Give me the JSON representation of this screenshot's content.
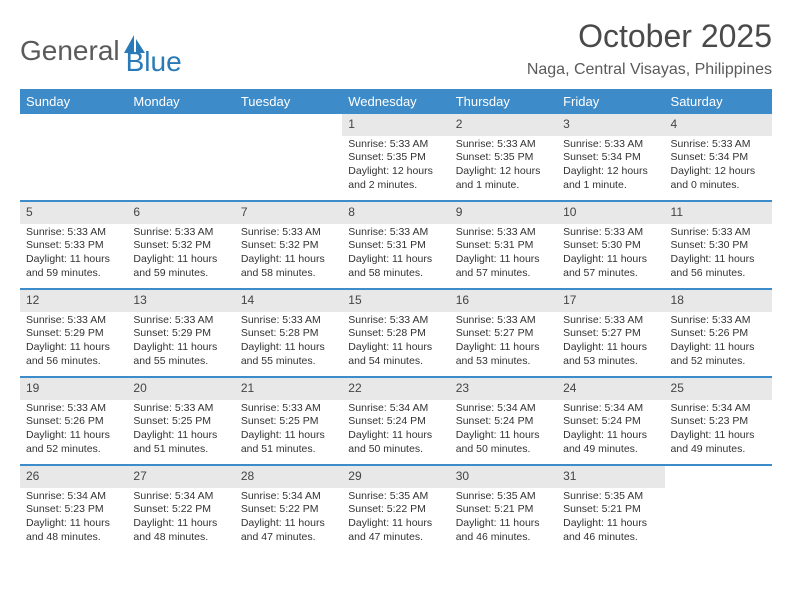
{
  "logo": {
    "text1": "General",
    "text2": "Blue"
  },
  "title": "October 2025",
  "location": "Naga, Central Visayas, Philippines",
  "colors": {
    "header_bg": "#3d8bc8",
    "header_text": "#ffffff",
    "daynum_bg": "#e8e8e8",
    "rule": "#3d8bc8",
    "logo_gray": "#5a5a5a",
    "logo_blue": "#2a7ab8"
  },
  "dayNames": [
    "Sunday",
    "Monday",
    "Tuesday",
    "Wednesday",
    "Thursday",
    "Friday",
    "Saturday"
  ],
  "weeks": [
    [
      null,
      null,
      null,
      {
        "n": "1",
        "sr": "5:33 AM",
        "ss": "5:35 PM",
        "dl": "12 hours and 2 minutes."
      },
      {
        "n": "2",
        "sr": "5:33 AM",
        "ss": "5:35 PM",
        "dl": "12 hours and 1 minute."
      },
      {
        "n": "3",
        "sr": "5:33 AM",
        "ss": "5:34 PM",
        "dl": "12 hours and 1 minute."
      },
      {
        "n": "4",
        "sr": "5:33 AM",
        "ss": "5:34 PM",
        "dl": "12 hours and 0 minutes."
      }
    ],
    [
      {
        "n": "5",
        "sr": "5:33 AM",
        "ss": "5:33 PM",
        "dl": "11 hours and 59 minutes."
      },
      {
        "n": "6",
        "sr": "5:33 AM",
        "ss": "5:32 PM",
        "dl": "11 hours and 59 minutes."
      },
      {
        "n": "7",
        "sr": "5:33 AM",
        "ss": "5:32 PM",
        "dl": "11 hours and 58 minutes."
      },
      {
        "n": "8",
        "sr": "5:33 AM",
        "ss": "5:31 PM",
        "dl": "11 hours and 58 minutes."
      },
      {
        "n": "9",
        "sr": "5:33 AM",
        "ss": "5:31 PM",
        "dl": "11 hours and 57 minutes."
      },
      {
        "n": "10",
        "sr": "5:33 AM",
        "ss": "5:30 PM",
        "dl": "11 hours and 57 minutes."
      },
      {
        "n": "11",
        "sr": "5:33 AM",
        "ss": "5:30 PM",
        "dl": "11 hours and 56 minutes."
      }
    ],
    [
      {
        "n": "12",
        "sr": "5:33 AM",
        "ss": "5:29 PM",
        "dl": "11 hours and 56 minutes."
      },
      {
        "n": "13",
        "sr": "5:33 AM",
        "ss": "5:29 PM",
        "dl": "11 hours and 55 minutes."
      },
      {
        "n": "14",
        "sr": "5:33 AM",
        "ss": "5:28 PM",
        "dl": "11 hours and 55 minutes."
      },
      {
        "n": "15",
        "sr": "5:33 AM",
        "ss": "5:28 PM",
        "dl": "11 hours and 54 minutes."
      },
      {
        "n": "16",
        "sr": "5:33 AM",
        "ss": "5:27 PM",
        "dl": "11 hours and 53 minutes."
      },
      {
        "n": "17",
        "sr": "5:33 AM",
        "ss": "5:27 PM",
        "dl": "11 hours and 53 minutes."
      },
      {
        "n": "18",
        "sr": "5:33 AM",
        "ss": "5:26 PM",
        "dl": "11 hours and 52 minutes."
      }
    ],
    [
      {
        "n": "19",
        "sr": "5:33 AM",
        "ss": "5:26 PM",
        "dl": "11 hours and 52 minutes."
      },
      {
        "n": "20",
        "sr": "5:33 AM",
        "ss": "5:25 PM",
        "dl": "11 hours and 51 minutes."
      },
      {
        "n": "21",
        "sr": "5:33 AM",
        "ss": "5:25 PM",
        "dl": "11 hours and 51 minutes."
      },
      {
        "n": "22",
        "sr": "5:34 AM",
        "ss": "5:24 PM",
        "dl": "11 hours and 50 minutes."
      },
      {
        "n": "23",
        "sr": "5:34 AM",
        "ss": "5:24 PM",
        "dl": "11 hours and 50 minutes."
      },
      {
        "n": "24",
        "sr": "5:34 AM",
        "ss": "5:24 PM",
        "dl": "11 hours and 49 minutes."
      },
      {
        "n": "25",
        "sr": "5:34 AM",
        "ss": "5:23 PM",
        "dl": "11 hours and 49 minutes."
      }
    ],
    [
      {
        "n": "26",
        "sr": "5:34 AM",
        "ss": "5:23 PM",
        "dl": "11 hours and 48 minutes."
      },
      {
        "n": "27",
        "sr": "5:34 AM",
        "ss": "5:22 PM",
        "dl": "11 hours and 48 minutes."
      },
      {
        "n": "28",
        "sr": "5:34 AM",
        "ss": "5:22 PM",
        "dl": "11 hours and 47 minutes."
      },
      {
        "n": "29",
        "sr": "5:35 AM",
        "ss": "5:22 PM",
        "dl": "11 hours and 47 minutes."
      },
      {
        "n": "30",
        "sr": "5:35 AM",
        "ss": "5:21 PM",
        "dl": "11 hours and 46 minutes."
      },
      {
        "n": "31",
        "sr": "5:35 AM",
        "ss": "5:21 PM",
        "dl": "11 hours and 46 minutes."
      },
      null
    ]
  ],
  "labels": {
    "sunrise": "Sunrise: ",
    "sunset": "Sunset: ",
    "daylight": "Daylight: "
  }
}
